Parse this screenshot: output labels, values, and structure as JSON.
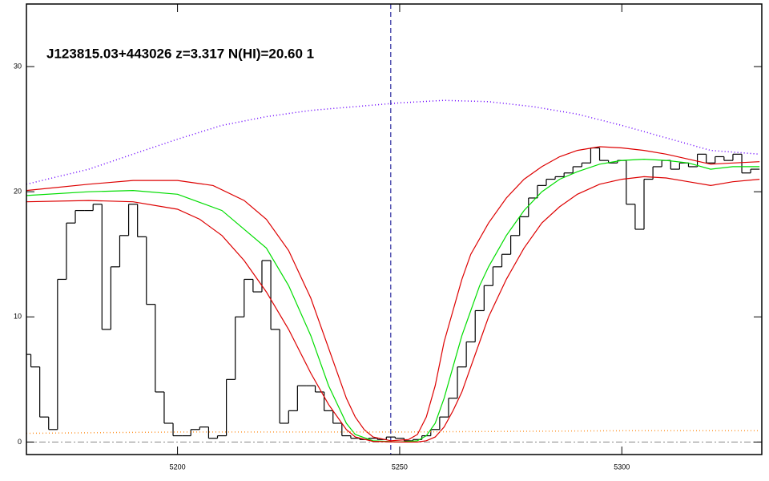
{
  "chart_data": {
    "type": "line",
    "title": "J123815.03+443026 z=3.317 N(HI)=20.60 1",
    "xlim": [
      5166,
      5331.5
    ],
    "ylim": [
      -1,
      35
    ],
    "xticks": [
      5200,
      5250,
      5300
    ],
    "yticks": [
      0,
      10,
      20,
      30
    ],
    "hline": 0,
    "vline": 5248,
    "series": [
      {
        "color": "#000000",
        "style": "steps",
        "x": [
          5166,
          5168,
          5170,
          5172,
          5174,
          5176,
          5178,
          5180,
          5182,
          5184,
          5186,
          5188,
          5190,
          5192,
          5194,
          5196,
          5198,
          5200,
          5202,
          5204,
          5206,
          5208,
          5210,
          5212,
          5214,
          5216,
          5218,
          5220,
          5222,
          5224,
          5226,
          5228,
          5230,
          5232,
          5234,
          5236,
          5238,
          5240,
          5242,
          5244,
          5246,
          5248,
          5250,
          5252,
          5254,
          5256,
          5258,
          5260,
          5262,
          5264,
          5266,
          5268,
          5270,
          5272,
          5274,
          5276,
          5278,
          5280,
          5282,
          5284,
          5286,
          5288,
          5290,
          5292,
          5294,
          5296,
          5298,
          5300,
          5302,
          5304,
          5306,
          5308,
          5310,
          5312,
          5314,
          5316,
          5318,
          5320,
          5322,
          5324,
          5326,
          5328,
          5330
        ],
        "values": [
          7,
          6,
          2,
          1,
          13,
          17.5,
          18.5,
          18.5,
          19,
          9,
          14,
          16.5,
          19,
          16.4,
          11,
          4,
          1.5,
          0.5,
          0.5,
          1,
          1.2,
          0.3,
          0.5,
          5,
          10,
          13,
          12,
          14.5,
          9,
          1.5,
          2.5,
          4.5,
          4.5,
          4,
          2.5,
          1.5,
          0.5,
          0.3,
          0.2,
          0.3,
          0.2,
          0.4,
          0.3,
          0.1,
          0.2,
          0.5,
          1,
          2,
          3.5,
          6,
          8,
          10.5,
          12.5,
          14,
          15,
          16.5,
          18,
          19.5,
          20.5,
          21,
          21.2,
          21.5,
          22,
          22.3,
          23.5,
          22.5,
          22.3,
          22.5,
          19,
          17,
          21,
          22,
          22.5,
          21.8,
          22.3,
          22,
          23,
          22.3,
          22.8,
          22.5,
          23,
          21.5,
          21.8
        ]
      },
      {
        "color": "#00dd00",
        "style": "solid",
        "x": [
          5166,
          5180,
          5190,
          5200,
          5210,
          5220,
          5225,
          5230,
          5234,
          5238,
          5240,
          5244,
          5250,
          5254,
          5256,
          5258,
          5260,
          5262,
          5264,
          5266,
          5268,
          5270,
          5274,
          5278,
          5282,
          5286,
          5290,
          5295,
          5300,
          5305,
          5310,
          5315,
          5320,
          5325,
          5331
        ],
        "values": [
          19.7,
          20,
          20.1,
          19.8,
          18.5,
          15.5,
          12.5,
          8.5,
          4.5,
          1.5,
          0.6,
          0.1,
          0,
          0.1,
          0.5,
          1.5,
          3.5,
          6,
          8.5,
          10.5,
          12.5,
          14,
          16.5,
          18.5,
          20,
          21,
          21.6,
          22.2,
          22.5,
          22.6,
          22.5,
          22.3,
          21.8,
          22,
          22
        ]
      },
      {
        "color": "#dd0000",
        "style": "solid",
        "x": [
          5166,
          5180,
          5190,
          5200,
          5208,
          5215,
          5220,
          5225,
          5230,
          5234,
          5238,
          5240,
          5242,
          5244,
          5248,
          5252,
          5254,
          5256,
          5258,
          5260,
          5262,
          5264,
          5266,
          5270,
          5274,
          5278,
          5282,
          5286,
          5290,
          5295,
          5300,
          5305,
          5310,
          5315,
          5320,
          5325,
          5331
        ],
        "values": [
          20.1,
          20.6,
          20.9,
          20.9,
          20.5,
          19.3,
          17.8,
          15.3,
          11.5,
          7.5,
          3.5,
          2,
          1,
          0.4,
          0.1,
          0.2,
          0.6,
          2,
          4.5,
          8,
          10.5,
          13,
          15,
          17.5,
          19.5,
          21,
          22,
          22.8,
          23.3,
          23.6,
          23.5,
          23.3,
          23,
          22.6,
          22.2,
          22.3,
          22.4
        ]
      },
      {
        "color": "#dd0000",
        "style": "solid",
        "x": [
          5166,
          5180,
          5190,
          5200,
          5205,
          5210,
          5215,
          5220,
          5225,
          5230,
          5234,
          5238,
          5240,
          5244,
          5250,
          5254,
          5256,
          5258,
          5260,
          5262,
          5264,
          5266,
          5268,
          5270,
          5274,
          5278,
          5282,
          5286,
          5290,
          5295,
          5300,
          5305,
          5310,
          5315,
          5320,
          5325,
          5331
        ],
        "values": [
          19.2,
          19.3,
          19.2,
          18.6,
          17.8,
          16.5,
          14.5,
          12,
          9,
          5.5,
          3,
          1,
          0.4,
          0.05,
          0,
          0,
          0.1,
          0.4,
          1.2,
          2.5,
          4,
          6,
          8,
          10,
          13,
          15.5,
          17.5,
          18.8,
          19.8,
          20.6,
          21,
          21.2,
          21.1,
          20.8,
          20.5,
          20.8,
          21
        ]
      },
      {
        "color": "#6a00ff",
        "style": "dotted",
        "x": [
          5166,
          5180,
          5190,
          5200,
          5210,
          5220,
          5230,
          5240,
          5250,
          5260,
          5270,
          5280,
          5290,
          5300,
          5310,
          5320,
          5331
        ],
        "values": [
          20.6,
          21.8,
          23,
          24.2,
          25.3,
          26,
          26.5,
          26.8,
          27.1,
          27.3,
          27.2,
          26.8,
          26.2,
          25.3,
          24.3,
          23.3,
          23
        ]
      },
      {
        "color": "#ff9933",
        "style": "dotted",
        "x": [
          5166,
          5200,
          5250,
          5300,
          5331
        ],
        "values": [
          0.7,
          0.8,
          0.8,
          0.9,
          0.9
        ]
      }
    ]
  }
}
